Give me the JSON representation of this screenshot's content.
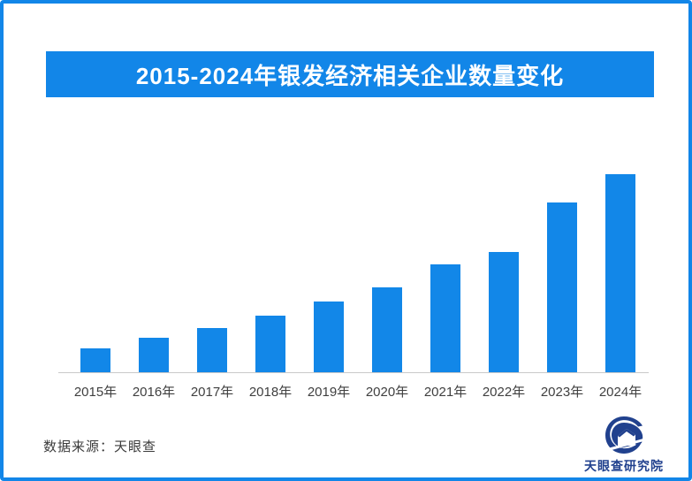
{
  "page": {
    "frame_color": "#1286E8",
    "background_color": "#FFFFFF"
  },
  "title_banner": {
    "text": "2015-2024年银发经济相关企业数量变化",
    "bg_color": "#1286E8",
    "text_color": "#FFFFFF"
  },
  "chart_data": {
    "type": "bar",
    "title": "2015-2024年银发经济相关企业数量变化",
    "categories": [
      "2015年",
      "2016年",
      "2017年",
      "2018年",
      "2019年",
      "2020年",
      "2021年",
      "2022年",
      "2023年",
      "2024年"
    ],
    "values": [
      12.1,
      17.4,
      22.5,
      28.8,
      35.7,
      42.9,
      54.5,
      60.7,
      85.7,
      100
    ],
    "values_note": "y-axis is unlabeled in the figure; values are relative bar heights indexed to 2024 = 100",
    "xlabel": "",
    "ylabel": "",
    "ylim": [
      0,
      100
    ],
    "grid": false,
    "legend": false,
    "bar_color": "#1287E8",
    "axis_line_color": "#C9C9C9"
  },
  "footer": {
    "source_text": "数据来源：天眼查",
    "logo_text": "天眼查研究院",
    "logo_color": "#21418E"
  }
}
